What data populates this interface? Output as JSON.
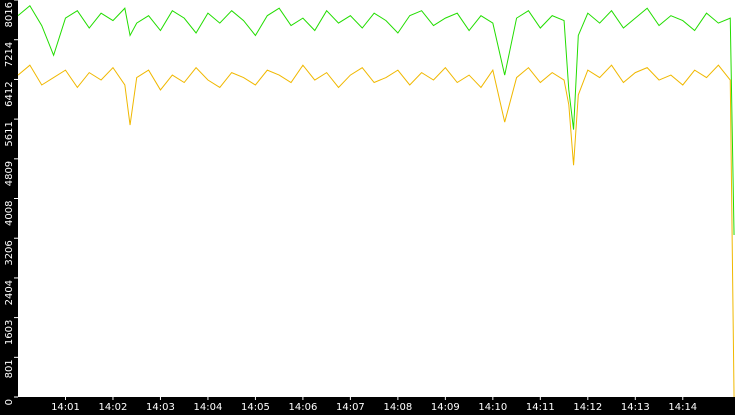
{
  "chart_data": {
    "type": "line",
    "x": [
      0,
      0.25,
      0.5,
      0.75,
      1,
      1.25,
      1.5,
      1.75,
      2,
      2.25,
      2.36,
      2.5,
      2.75,
      3,
      3.25,
      3.5,
      3.75,
      4,
      4.25,
      4.5,
      4.75,
      5,
      5.25,
      5.5,
      5.75,
      6,
      6.25,
      6.5,
      6.75,
      7,
      7.25,
      7.5,
      7.75,
      8,
      8.25,
      8.5,
      8.75,
      9,
      9.25,
      9.5,
      9.75,
      10,
      10.25,
      10.5,
      10.75,
      11,
      11.25,
      11.5,
      11.6,
      11.7,
      11.8,
      12,
      12.25,
      12.5,
      12.75,
      13,
      13.25,
      13.5,
      13.75,
      14,
      14.25,
      14.5,
      14.75,
      15,
      15.08
    ],
    "series": [
      {
        "color": "#22dd00",
        "values": [
          7700,
          7900,
          7500,
          6900,
          7650,
          7800,
          7450,
          7750,
          7600,
          7850,
          7300,
          7550,
          7700,
          7400,
          7800,
          7650,
          7350,
          7750,
          7550,
          7800,
          7600,
          7300,
          7700,
          7850,
          7500,
          7650,
          7400,
          7800,
          7550,
          7700,
          7450,
          7750,
          7600,
          7350,
          7700,
          7800,
          7500,
          7650,
          7750,
          7400,
          7700,
          7550,
          6500,
          7650,
          7800,
          7450,
          7700,
          7600,
          6200,
          5400,
          7300,
          7750,
          7550,
          7800,
          7450,
          7650,
          7850,
          7500,
          7700,
          7600,
          7400,
          7750,
          7550,
          7650,
          3270
        ]
      },
      {
        "color": "#f0b800",
        "values": [
          6500,
          6700,
          6300,
          6450,
          6600,
          6250,
          6550,
          6400,
          6650,
          6300,
          5490,
          6450,
          6600,
          6200,
          6500,
          6350,
          6650,
          6400,
          6250,
          6550,
          6450,
          6300,
          6600,
          6500,
          6350,
          6700,
          6400,
          6550,
          6250,
          6500,
          6650,
          6350,
          6450,
          6600,
          6300,
          6550,
          6400,
          6650,
          6350,
          6500,
          6250,
          6600,
          5550,
          6450,
          6650,
          6350,
          6550,
          6400,
          5900,
          4680,
          6100,
          6600,
          6450,
          6700,
          6350,
          6550,
          6650,
          6400,
          6500,
          6300,
          6600,
          6450,
          6700,
          6400,
          0
        ]
      }
    ],
    "xlim": [
      0,
      15.1
    ],
    "xticks": [
      {
        "value": 1,
        "label": "14:01"
      },
      {
        "value": 2,
        "label": "14:02"
      },
      {
        "value": 3,
        "label": "14:03"
      },
      {
        "value": 4,
        "label": "14:04"
      },
      {
        "value": 5,
        "label": "14:05"
      },
      {
        "value": 6,
        "label": "14:06"
      },
      {
        "value": 7,
        "label": "14:07"
      },
      {
        "value": 8,
        "label": "14:08"
      },
      {
        "value": 9,
        "label": "14:09"
      },
      {
        "value": 10,
        "label": "14:10"
      },
      {
        "value": 11,
        "label": "14:11"
      },
      {
        "value": 12,
        "label": "14:12"
      },
      {
        "value": 13,
        "label": "14:13"
      },
      {
        "value": 14,
        "label": "14:14"
      }
    ],
    "ylim": [
      0,
      8016
    ],
    "yticks": [
      0,
      801,
      1603,
      2404,
      3206,
      4008,
      4809,
      5611,
      6412,
      7214,
      8016
    ]
  }
}
